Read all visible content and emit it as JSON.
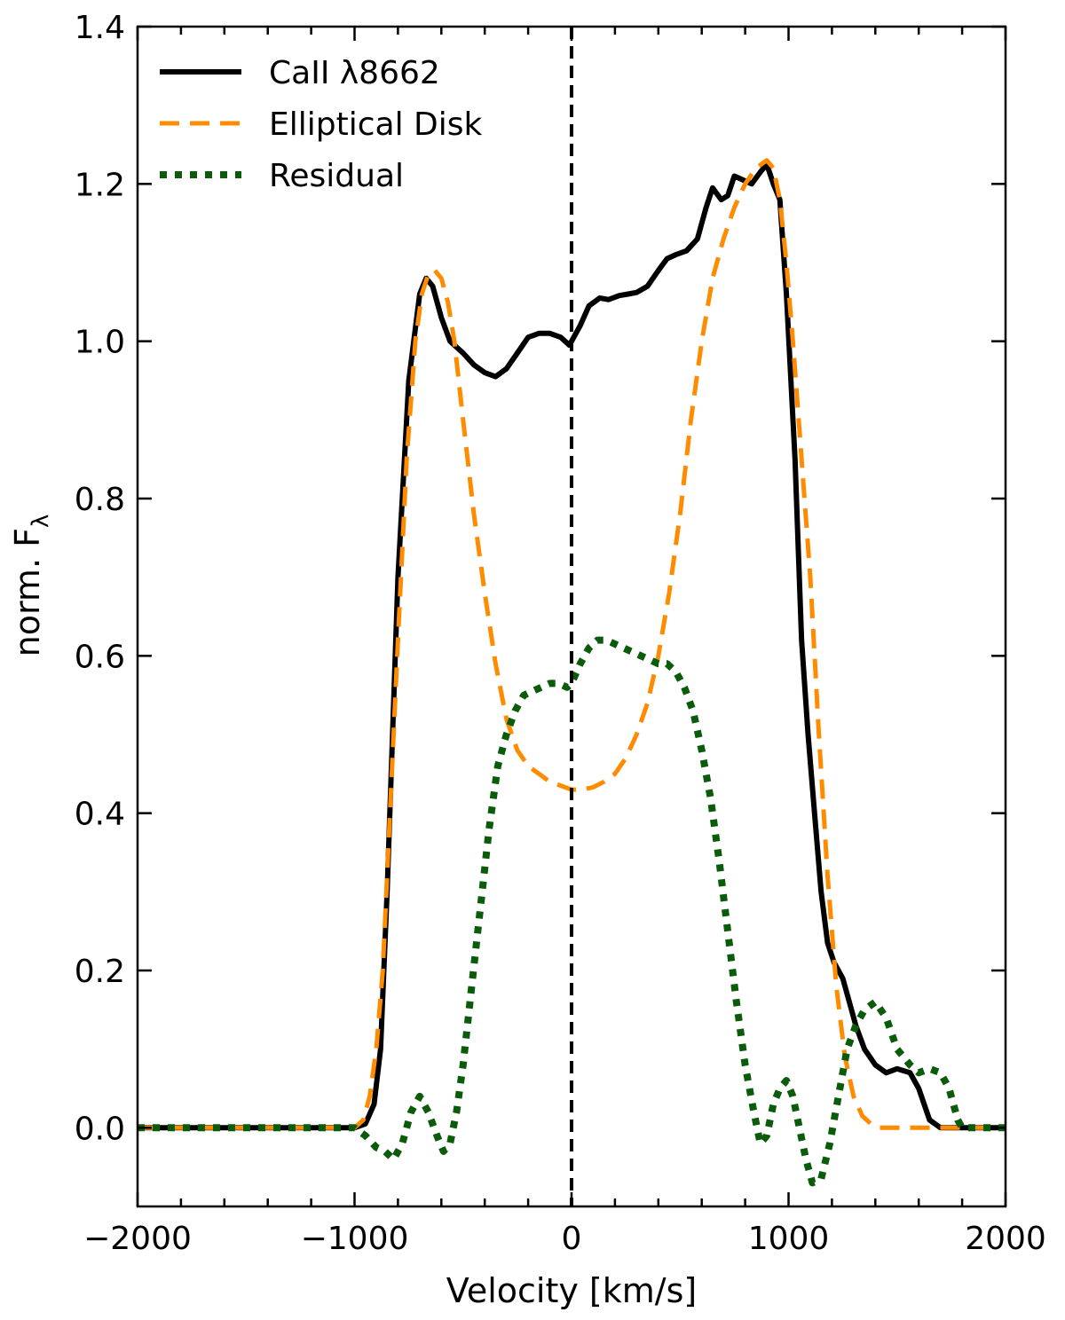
{
  "chart_data": {
    "type": "line",
    "xlabel": "Velocity [km/s]",
    "ylabel_main": "norm. F",
    "ylabel_sub": "λ",
    "xlim": [
      -2000,
      2000
    ],
    "ylim": [
      -0.1,
      1.4
    ],
    "xticks": [
      -2000,
      -1000,
      0,
      1000,
      2000
    ],
    "xtick_labels": [
      "−2000",
      "−1000",
      "0",
      "1000",
      "2000"
    ],
    "yticks": [
      0.0,
      0.2,
      0.4,
      0.6,
      0.8,
      1.0,
      1.2,
      1.4
    ],
    "ytick_labels": [
      "0.0",
      "0.2",
      "0.4",
      "0.6",
      "0.8",
      "1.0",
      "1.2",
      "1.4"
    ],
    "legend_position": "top-left",
    "vline_x": 0,
    "series": [
      {
        "name": "CaII λ8662",
        "color": "#000000",
        "style": "solid",
        "x": [
          -2000,
          -1000,
          -950,
          -910,
          -880,
          -850,
          -800,
          -750,
          -700,
          -670,
          -640,
          -600,
          -560,
          -500,
          -450,
          -400,
          -350,
          -300,
          -250,
          -200,
          -150,
          -100,
          -50,
          -10,
          0,
          40,
          80,
          130,
          170,
          220,
          260,
          300,
          350,
          400,
          440,
          480,
          530,
          580,
          620,
          650,
          690,
          720,
          750,
          790,
          830,
          870,
          900,
          930,
          960,
          990,
          1030,
          1060,
          1090,
          1120,
          1150,
          1180,
          1210,
          1250,
          1280,
          1310,
          1350,
          1400,
          1450,
          1500,
          1560,
          1600,
          1650,
          1700,
          1740,
          1780,
          1800,
          1850,
          2000
        ],
        "y": [
          0,
          0,
          0.005,
          0.03,
          0.1,
          0.3,
          0.7,
          0.95,
          1.06,
          1.08,
          1.07,
          1.03,
          1.0,
          0.985,
          0.97,
          0.96,
          0.955,
          0.965,
          0.985,
          1.005,
          1.01,
          1.01,
          1.005,
          0.995,
          1.0,
          1.02,
          1.045,
          1.055,
          1.053,
          1.058,
          1.06,
          1.062,
          1.07,
          1.09,
          1.105,
          1.11,
          1.115,
          1.13,
          1.17,
          1.195,
          1.18,
          1.185,
          1.21,
          1.205,
          1.2,
          1.215,
          1.225,
          1.2,
          1.18,
          1.06,
          0.85,
          0.62,
          0.5,
          0.4,
          0.3,
          0.235,
          0.21,
          0.19,
          0.16,
          0.13,
          0.1,
          0.08,
          0.07,
          0.075,
          0.07,
          0.05,
          0.01,
          0,
          0,
          0,
          0,
          0,
          0
        ]
      },
      {
        "name": "Elliptical Disk",
        "color": "#ff8c00",
        "style": "dashed",
        "x": [
          -2000,
          -1000,
          -960,
          -930,
          -900,
          -870,
          -840,
          -800,
          -760,
          -720,
          -690,
          -660,
          -630,
          -600,
          -570,
          -540,
          -500,
          -450,
          -400,
          -350,
          -300,
          -250,
          -200,
          -150,
          -100,
          -50,
          0,
          50,
          100,
          150,
          200,
          250,
          300,
          350,
          400,
          450,
          500,
          550,
          600,
          650,
          700,
          750,
          800,
          850,
          900,
          930,
          960,
          990,
          1020,
          1060,
          1100,
          1140,
          1180,
          1220,
          1260,
          1300,
          1340,
          1380,
          1420,
          1460,
          1500,
          2000
        ],
        "y": [
          0,
          0,
          0.01,
          0.04,
          0.1,
          0.2,
          0.38,
          0.62,
          0.85,
          1.0,
          1.06,
          1.085,
          1.09,
          1.08,
          1.05,
          1.0,
          0.9,
          0.78,
          0.68,
          0.59,
          0.52,
          0.48,
          0.46,
          0.45,
          0.44,
          0.435,
          0.43,
          0.43,
          0.433,
          0.44,
          0.45,
          0.47,
          0.5,
          0.54,
          0.6,
          0.68,
          0.78,
          0.9,
          1.0,
          1.08,
          1.13,
          1.17,
          1.2,
          1.22,
          1.23,
          1.22,
          1.18,
          1.1,
          1.0,
          0.85,
          0.7,
          0.5,
          0.32,
          0.18,
          0.09,
          0.04,
          0.015,
          0.005,
          0,
          0,
          0,
          0
        ]
      },
      {
        "name": "Residual",
        "color": "#0a5c0a",
        "style": "dotted",
        "x": [
          -2000,
          -1000,
          -950,
          -900,
          -860,
          -820,
          -780,
          -740,
          -700,
          -660,
          -620,
          -590,
          -560,
          -530,
          -500,
          -460,
          -420,
          -380,
          -340,
          -300,
          -260,
          -220,
          -180,
          -140,
          -100,
          -60,
          -20,
          0,
          40,
          80,
          120,
          160,
          200,
          240,
          280,
          320,
          360,
          400,
          440,
          480,
          520,
          560,
          600,
          640,
          680,
          720,
          760,
          800,
          840,
          870,
          900,
          930,
          960,
          990,
          1020,
          1050,
          1080,
          1110,
          1150,
          1190,
          1230,
          1270,
          1310,
          1350,
          1400,
          1450,
          1500,
          1560,
          1600,
          1650,
          1700,
          1740,
          1780,
          1800,
          1850,
          2000
        ],
        "y": [
          0,
          0,
          -0.01,
          -0.025,
          -0.03,
          -0.04,
          -0.02,
          0.02,
          0.04,
          0.02,
          -0.01,
          -0.03,
          -0.02,
          0.02,
          0.08,
          0.18,
          0.28,
          0.38,
          0.46,
          0.5,
          0.53,
          0.55,
          0.555,
          0.56,
          0.565,
          0.565,
          0.56,
          0.565,
          0.59,
          0.61,
          0.62,
          0.62,
          0.615,
          0.61,
          0.605,
          0.6,
          0.595,
          0.59,
          0.59,
          0.58,
          0.56,
          0.53,
          0.48,
          0.42,
          0.34,
          0.25,
          0.16,
          0.08,
          0.02,
          -0.02,
          -0.01,
          0.03,
          0.05,
          0.06,
          0.04,
          0.0,
          -0.04,
          -0.07,
          -0.065,
          -0.02,
          0.04,
          0.1,
          0.13,
          0.15,
          0.16,
          0.14,
          0.1,
          0.08,
          0.07,
          0.075,
          0.07,
          0.05,
          0.01,
          0,
          0,
          0
        ]
      }
    ]
  }
}
